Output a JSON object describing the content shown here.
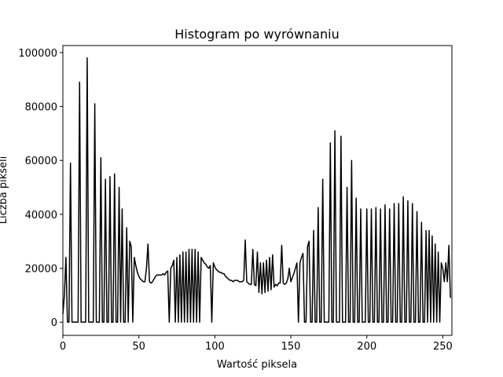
{
  "chart_data": {
    "type": "line",
    "title": "Histogram po wyrównaniu",
    "xlabel": "Wartość piksela",
    "ylabel": "Liczba pikseli",
    "x": [
      0,
      1,
      2,
      3,
      4,
      5,
      6,
      7,
      8,
      9,
      10,
      11,
      12,
      13,
      14,
      15,
      16,
      17,
      18,
      19,
      20,
      21,
      22,
      23,
      24,
      25,
      26,
      27,
      28,
      29,
      30,
      31,
      32,
      33,
      34,
      35,
      36,
      37,
      38,
      39,
      40,
      41,
      42,
      43,
      44,
      45,
      46,
      47,
      48,
      49,
      50,
      51,
      52,
      53,
      54,
      55,
      56,
      57,
      58,
      59,
      60,
      61,
      62,
      63,
      64,
      65,
      66,
      67,
      68,
      69,
      70,
      71,
      72,
      73,
      74,
      75,
      76,
      77,
      78,
      79,
      80,
      81,
      82,
      83,
      84,
      85,
      86,
      87,
      88,
      89,
      90,
      91,
      92,
      93,
      94,
      95,
      96,
      97,
      98,
      99,
      100,
      101,
      102,
      103,
      104,
      105,
      106,
      107,
      108,
      109,
      110,
      111,
      112,
      113,
      114,
      115,
      116,
      117,
      118,
      119,
      120,
      121,
      122,
      123,
      124,
      125,
      126,
      127,
      128,
      129,
      130,
      131,
      132,
      133,
      134,
      135,
      136,
      137,
      138,
      139,
      140,
      141,
      142,
      143,
      144,
      145,
      146,
      147,
      148,
      149,
      150,
      151,
      152,
      153,
      154,
      155,
      156,
      157,
      158,
      159,
      160,
      161,
      162,
      163,
      164,
      165,
      166,
      167,
      168,
      169,
      170,
      171,
      172,
      173,
      174,
      175,
      176,
      177,
      178,
      179,
      180,
      181,
      182,
      183,
      184,
      185,
      186,
      187,
      188,
      189,
      190,
      191,
      192,
      193,
      194,
      195,
      196,
      197,
      198,
      199,
      200,
      201,
      202,
      203,
      204,
      205,
      206,
      207,
      208,
      209,
      210,
      211,
      212,
      213,
      214,
      215,
      216,
      217,
      218,
      219,
      220,
      221,
      222,
      223,
      224,
      225,
      226,
      227,
      228,
      229,
      230,
      231,
      232,
      233,
      234,
      235,
      236,
      237,
      238,
      239,
      240,
      241,
      242,
      243,
      244,
      245,
      246,
      247,
      248,
      249,
      250,
      251,
      252,
      253,
      254,
      255
    ],
    "series": [
      {
        "color": "#000000",
        "values": [
          3000,
          10000,
          24000,
          0,
          0,
          59000,
          0,
          0,
          0,
          0,
          0,
          89000,
          0,
          0,
          0,
          0,
          98000,
          0,
          0,
          0,
          0,
          81000,
          0,
          0,
          0,
          61000,
          0,
          0,
          53000,
          0,
          0,
          54000,
          0,
          0,
          55000,
          0,
          0,
          50000,
          0,
          42000,
          0,
          0,
          35000,
          0,
          30000,
          28000,
          0,
          24000,
          21000,
          18500,
          17000,
          16000,
          15500,
          15000,
          15000,
          20000,
          29000,
          15000,
          14500,
          15000,
          16000,
          17000,
          17500,
          17500,
          17500,
          17500,
          18000,
          17500,
          18500,
          19000,
          0,
          20000,
          21000,
          23000,
          0,
          24000,
          0,
          25000,
          0,
          26000,
          0,
          26000,
          0,
          27000,
          0,
          27000,
          0,
          27000,
          0,
          26000,
          0,
          24000,
          23000,
          22000,
          21500,
          20500,
          20000,
          21000,
          0,
          22000,
          20500,
          19500,
          19000,
          18500,
          18500,
          18000,
          18000,
          17000,
          16500,
          16000,
          15500,
          15500,
          15000,
          15500,
          15500,
          15500,
          15000,
          15000,
          15000,
          15500,
          30500,
          15000,
          14500,
          14000,
          14000,
          27000,
          14000,
          13500,
          26000,
          11000,
          22000,
          10500,
          22000,
          11000,
          23000,
          11500,
          24000,
          12000,
          25000,
          13000,
          14000,
          13500,
          14500,
          14500,
          28500,
          14500,
          14000,
          14500,
          16000,
          20000,
          15000,
          16500,
          18000,
          20000,
          22000,
          0,
          22000,
          24000,
          25500,
          0,
          0,
          28000,
          30000,
          0,
          0,
          34000,
          0,
          0,
          42500,
          0,
          0,
          53000,
          0,
          0,
          0,
          0,
          66500,
          0,
          0,
          71000,
          0,
          0,
          0,
          69000,
          0,
          0,
          0,
          50000,
          0,
          0,
          60000,
          0,
          0,
          46000,
          0,
          0,
          42000,
          0,
          0,
          0,
          42000,
          0,
          0,
          42000,
          0,
          0,
          42500,
          0,
          0,
          42000,
          0,
          0,
          43500,
          0,
          0,
          42000,
          0,
          0,
          44000,
          0,
          0,
          44000,
          0,
          0,
          46500,
          0,
          0,
          45000,
          0,
          0,
          44000,
          0,
          0,
          41000,
          0,
          0,
          37000,
          0,
          0,
          34000,
          0,
          34000,
          0,
          32000,
          0,
          29000,
          0,
          26000,
          0,
          22000,
          20000,
          15000,
          22000,
          15000,
          28500,
          9000
        ]
      }
    ],
    "xlim": [
      0,
      256
    ],
    "ylim": [
      -4900,
      102600
    ],
    "xticks": [
      0,
      50,
      100,
      150,
      200,
      250
    ],
    "yticks": [
      0,
      20000,
      40000,
      60000,
      80000,
      100000
    ]
  }
}
